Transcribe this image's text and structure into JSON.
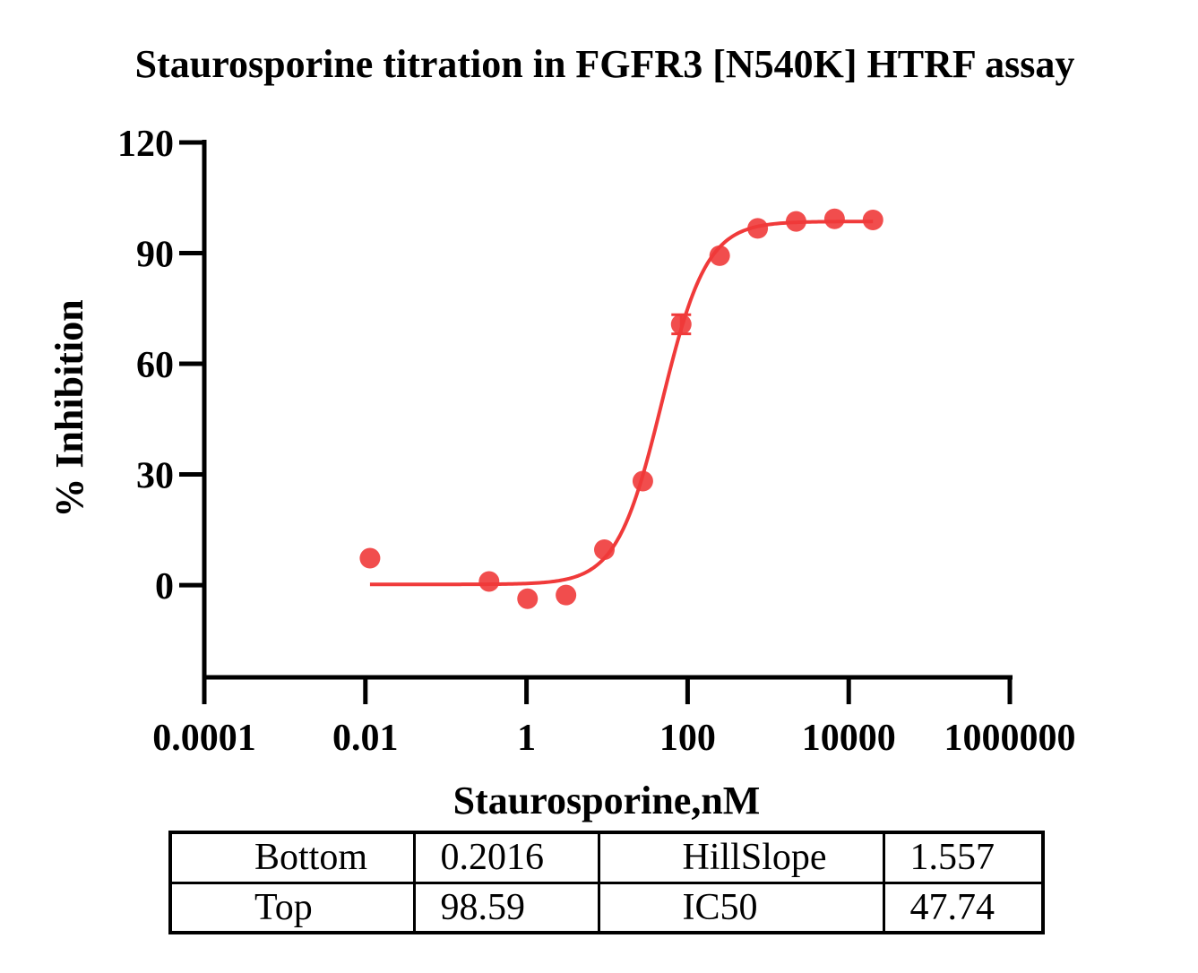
{
  "chart_data": {
    "type": "scatter",
    "title": "Staurosporine titration in FGFR3 [N540K] HTRF assay",
    "xlabel": "Staurosporine,nM",
    "ylabel": "% Inhibition",
    "x_scale": "log",
    "xlim": [
      0.0001,
      1000000
    ],
    "ylim": [
      -25,
      120
    ],
    "x_ticks": [
      0.0001,
      0.01,
      1,
      100,
      10000,
      1000000
    ],
    "x_tick_labels": [
      "0.0001",
      "0.01",
      "1",
      "100",
      "10000",
      "1000000"
    ],
    "y_ticks": [
      0,
      30,
      60,
      90,
      120
    ],
    "y_tick_labels": [
      "0",
      "30",
      "60",
      "90",
      "120"
    ],
    "color": "#f03a3a",
    "series": [
      {
        "x": [
          0.0114,
          0.343,
          1.03,
          3.09,
          9.26,
          27.8,
          83.3,
          250,
          741,
          2220,
          6670,
          20000
        ],
        "y": [
          7.3,
          1.0,
          -3.7,
          -2.7,
          9.6,
          28.2,
          70.7,
          89.3,
          96.7,
          98.6,
          99.3,
          99.0
        ],
        "error": [
          0,
          0,
          0,
          0,
          0,
          0,
          2.6,
          0,
          0,
          0,
          0,
          0
        ]
      }
    ],
    "fit": {
      "model": "four-parameter logistic",
      "bottom": 0.2016,
      "top": 98.59,
      "hillslope": 1.557,
      "ic50": 47.74
    },
    "table": {
      "rows": [
        [
          "Bottom",
          "0.2016",
          "HillSlope",
          "1.557"
        ],
        [
          "Top",
          "98.59",
          "IC50",
          "47.74"
        ]
      ]
    }
  }
}
